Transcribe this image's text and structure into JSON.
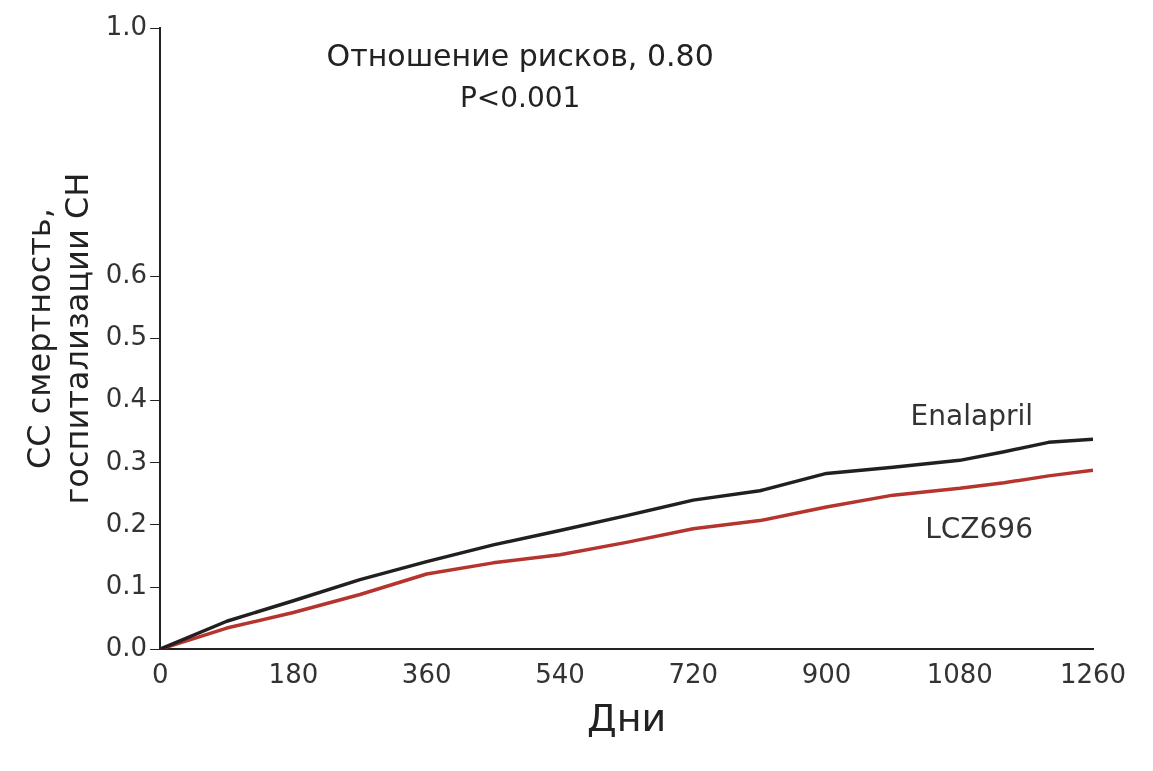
{
  "chart_data": {
    "type": "line",
    "xlabel": "Дни",
    "ylabel": "СС смертность,\nгоспитализации СН",
    "annotations": [
      "Отношение рисков, 0.80",
      "P<0.001"
    ],
    "x": [
      0,
      90,
      180,
      270,
      360,
      450,
      540,
      630,
      720,
      810,
      900,
      990,
      1080,
      1140,
      1200,
      1260
    ],
    "series": [
      {
        "name": "Enalapril",
        "color": "#231f20",
        "values": [
          0,
          0.045,
          0.078,
          0.112,
          0.141,
          0.168,
          0.191,
          0.215,
          0.24,
          0.255,
          0.283,
          0.293,
          0.304,
          0.318,
          0.333,
          0.338
        ]
      },
      {
        "name": "LCZ696",
        "color": "#b5352e",
        "values": [
          0,
          0.034,
          0.059,
          0.088,
          0.121,
          0.139,
          0.152,
          0.172,
          0.194,
          0.207,
          0.229,
          0.248,
          0.259,
          0.268,
          0.279,
          0.288
        ]
      }
    ],
    "xlim": [
      0,
      1260
    ],
    "xticks": [
      0,
      180,
      360,
      540,
      720,
      900,
      1080,
      1260
    ],
    "ylim": [
      0,
      1.0
    ],
    "yticks": [
      {
        "value": 0,
        "label": "0.0"
      },
      0.1,
      0.2,
      0.3,
      0.4,
      0.5,
      0.6,
      {
        "value": 1.0,
        "label": "1.0"
      }
    ],
    "grid": false,
    "legend": false,
    "marker": "none",
    "line_style": "solid"
  }
}
